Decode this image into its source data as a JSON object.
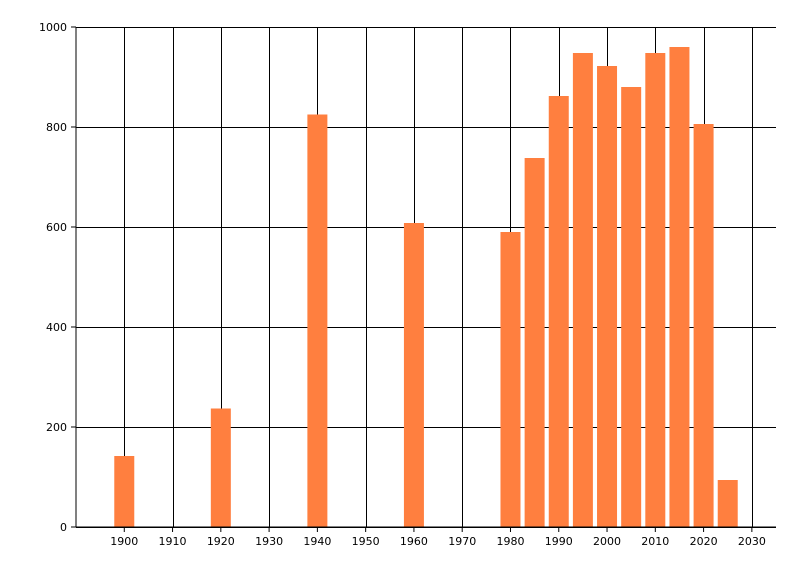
{
  "chart_data": {
    "type": "bar",
    "title": "",
    "xlabel": "",
    "ylabel": "",
    "x": [
      1900,
      1920,
      1940,
      1960,
      1980,
      1985,
      1990,
      1995,
      2000,
      2005,
      2010,
      2015,
      2020,
      2025
    ],
    "values": [
      142,
      237,
      825,
      608,
      590,
      738,
      862,
      948,
      922,
      880,
      948,
      960,
      806,
      94
    ],
    "xlim": [
      1890,
      2035
    ],
    "ylim": [
      0,
      1000
    ],
    "x_ticks": [
      1900,
      1910,
      1920,
      1930,
      1940,
      1950,
      1960,
      1970,
      1980,
      1990,
      2000,
      2010,
      2020,
      2030
    ],
    "y_ticks": [
      0,
      200,
      400,
      600,
      800,
      1000
    ],
    "bar_color": "#FF7F3F",
    "grid": true,
    "legend": "none"
  }
}
